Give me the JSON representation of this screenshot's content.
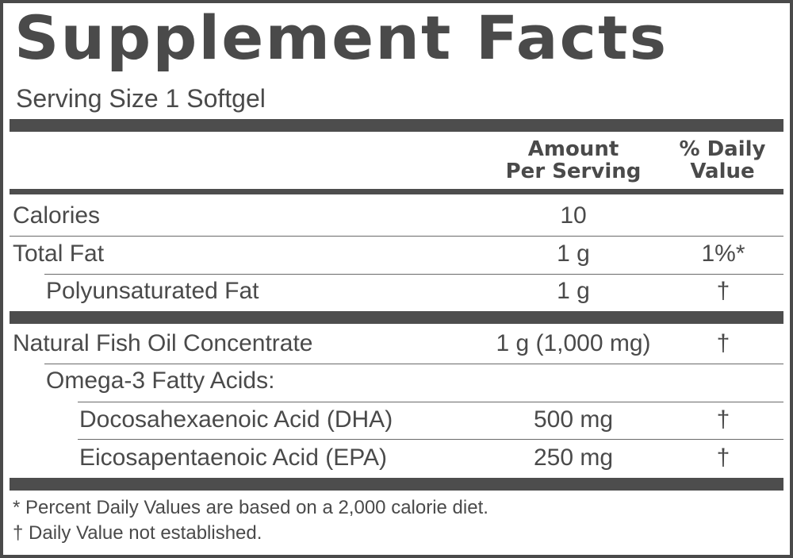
{
  "title": "Supplement Facts",
  "serving_size": "Serving Size 1 Softgel",
  "header": {
    "amount_line1": "Amount",
    "amount_line2": "Per Serving",
    "dv_line1": "% Daily",
    "dv_line2": "Value"
  },
  "rows": [
    {
      "name": "Calories",
      "amount": "10",
      "dv": ""
    },
    {
      "name": "Total Fat",
      "amount": "1 g",
      "dv": "1%*"
    },
    {
      "name": "Polyunsaturated Fat",
      "amount": "1 g",
      "dv": "†"
    },
    {
      "name": "Natural Fish Oil Concentrate",
      "amount": "1 g (1,000 mg)",
      "dv": "†"
    },
    {
      "name": "Omega-3 Fatty Acids:",
      "amount": "",
      "dv": ""
    },
    {
      "name": "Docosahexaenoic Acid (DHA)",
      "amount": "500 mg",
      "dv": "†"
    },
    {
      "name": "Eicosapentaenoic Acid (EPA)",
      "amount": "250 mg",
      "dv": "†"
    }
  ],
  "footnotes": [
    "* Percent Daily Values are based on a 2,000 calorie diet.",
    "† Daily Value not established."
  ]
}
